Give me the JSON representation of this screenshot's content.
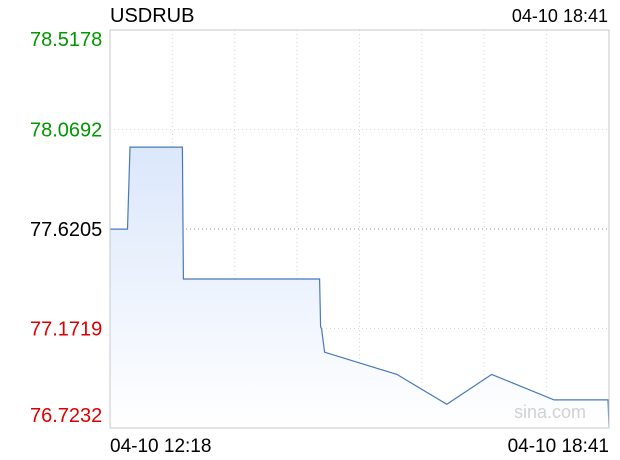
{
  "header": {
    "symbol": "USDRUB",
    "timestamp": "04-10 18:41"
  },
  "watermark": "sina.com",
  "colors": {
    "line": "#4a78b8",
    "area_top": "#dbe7fb",
    "area_bottom": "#ffffff",
    "up": "#009900",
    "down": "#dd0000",
    "neutral": "#000000",
    "grid": "#d8d8d8",
    "frame": "#c8c8c8"
  },
  "chart_data": {
    "type": "area",
    "title": "USDRUB",
    "reference": 77.6205,
    "ylim": [
      76.7232,
      78.5178
    ],
    "y_ticks": [
      {
        "label": "78.5178",
        "value": 78.5178,
        "tone": "up"
      },
      {
        "label": "78.0692",
        "value": 78.0692,
        "tone": "up"
      },
      {
        "label": "77.6205",
        "value": 77.6205,
        "tone": "neutral"
      },
      {
        "label": "77.1719",
        "value": 77.1719,
        "tone": "down"
      },
      {
        "label": "76.7232",
        "value": 76.7232,
        "tone": "down"
      }
    ],
    "x_ticks": [
      "04-10 12:18",
      "04-10 18:41"
    ],
    "grid": true,
    "vertical_gridlines": 8,
    "x": [
      0,
      0.035,
      0.04,
      0.145,
      0.147,
      0.42,
      0.422,
      0.424,
      0.43,
      0.575,
      0.675,
      0.765,
      0.89,
      0.998,
      1.0
    ],
    "values": [
      77.62,
      77.62,
      77.99,
      77.99,
      77.395,
      77.395,
      77.18,
      77.17,
      77.065,
      76.965,
      76.83,
      76.965,
      76.85,
      76.85,
      76.73
    ]
  }
}
